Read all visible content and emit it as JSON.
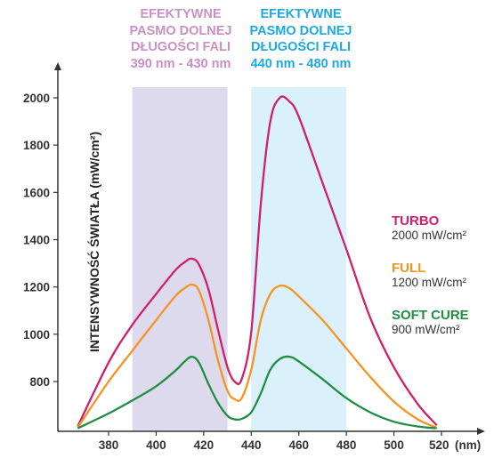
{
  "chart_data": {
    "type": "line",
    "x_unit": "(nm)",
    "ylabel": "INTENSYWNOŚĆ ŚWIATŁA (mW/cm²)",
    "xlim": [
      365,
      520
    ],
    "ylim": [
      600,
      2050
    ],
    "x_ticks": [
      380,
      400,
      420,
      440,
      460,
      480,
      500,
      520
    ],
    "y_ticks": [
      800,
      1000,
      1200,
      1400,
      1600,
      1800,
      2000
    ],
    "grid": false,
    "bands": [
      {
        "name": "band-violet",
        "x_range": [
          390,
          430
        ],
        "color": "#dcdaec",
        "title_lines": [
          "EFEKTYWNE",
          "PASMO DOLNEJ",
          "DŁUGOŚCI FALI",
          "390 nm - 430 nm"
        ],
        "title_color": "#c98fc6"
      },
      {
        "name": "band-blue",
        "x_range": [
          440,
          480
        ],
        "color": "#daf0fb",
        "title_lines": [
          "EFEKTYWNE",
          "PASMO DOLNEJ",
          "DŁUGOŚCI FALI",
          "440 nm - 480 nm"
        ],
        "title_color": "#1ca9e1"
      }
    ],
    "series": [
      {
        "name": "TURBO",
        "value_label": "2000 mW/cm²",
        "color": "#d11f6b",
        "x": [
          367,
          380,
          390,
          400,
          408,
          412,
          415,
          418,
          422,
          426,
          430,
          433,
          436,
          440,
          444,
          448,
          452,
          456,
          460,
          470,
          480,
          490,
          500,
          510,
          518
        ],
        "y": [
          610,
          880,
          1040,
          1170,
          1270,
          1305,
          1320,
          1295,
          1190,
          1020,
          860,
          800,
          810,
          1010,
          1550,
          1900,
          2000,
          1985,
          1920,
          1640,
          1360,
          1070,
          860,
          705,
          615
        ]
      },
      {
        "name": "FULL",
        "value_label": "1200 mW/cm²",
        "color": "#f59421",
        "x": [
          367,
          380,
          390,
          400,
          408,
          412,
          415,
          418,
          422,
          426,
          430,
          433,
          436,
          440,
          444,
          448,
          452,
          456,
          460,
          470,
          480,
          490,
          500,
          510,
          518
        ],
        "y": [
          605,
          800,
          930,
          1060,
          1160,
          1195,
          1210,
          1185,
          1060,
          890,
          760,
          725,
          730,
          850,
          1060,
          1170,
          1205,
          1195,
          1160,
          1060,
          940,
          820,
          715,
          640,
          605
        ]
      },
      {
        "name": "SOFT CURE",
        "value_label": "900 mW/cm²",
        "color": "#1f8e43",
        "x": [
          367,
          380,
          390,
          400,
          408,
          412,
          415,
          418,
          422,
          426,
          430,
          433,
          436,
          440,
          444,
          448,
          452,
          456,
          460,
          470,
          480,
          490,
          500,
          510,
          518
        ],
        "y": [
          602,
          665,
          720,
          780,
          845,
          885,
          905,
          880,
          790,
          710,
          655,
          640,
          642,
          670,
          750,
          850,
          895,
          905,
          885,
          810,
          730,
          670,
          630,
          610,
          602
        ]
      }
    ]
  }
}
